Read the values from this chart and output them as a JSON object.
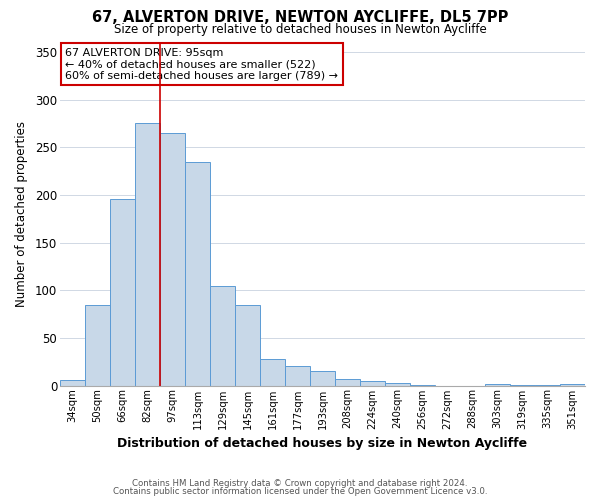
{
  "title": "67, ALVERTON DRIVE, NEWTON AYCLIFFE, DL5 7PP",
  "subtitle": "Size of property relative to detached houses in Newton Aycliffe",
  "xlabel": "Distribution of detached houses by size in Newton Aycliffe",
  "ylabel": "Number of detached properties",
  "bin_labels": [
    "34sqm",
    "50sqm",
    "66sqm",
    "82sqm",
    "97sqm",
    "113sqm",
    "129sqm",
    "145sqm",
    "161sqm",
    "177sqm",
    "193sqm",
    "208sqm",
    "224sqm",
    "240sqm",
    "256sqm",
    "272sqm",
    "288sqm",
    "303sqm",
    "319sqm",
    "335sqm",
    "351sqm"
  ],
  "bar_heights": [
    6,
    84,
    196,
    275,
    265,
    235,
    104,
    84,
    28,
    20,
    15,
    7,
    5,
    3,
    1,
    0,
    0,
    2,
    1,
    1,
    2
  ],
  "bar_color": "#c8d8e8",
  "bar_edgecolor": "#5b9bd5",
  "vline_pos": 3.5,
  "vline_color": "#cc0000",
  "annotation_line1": "67 ALVERTON DRIVE: 95sqm",
  "annotation_line2": "← 40% of detached houses are smaller (522)",
  "annotation_line3": "60% of semi-detached houses are larger (789) →",
  "annotation_box_edgecolor": "#cc0000",
  "ylim": [
    0,
    360
  ],
  "yticks": [
    0,
    50,
    100,
    150,
    200,
    250,
    300,
    350
  ],
  "footer1": "Contains HM Land Registry data © Crown copyright and database right 2024.",
  "footer2": "Contains public sector information licensed under the Open Government Licence v3.0.",
  "background_color": "#ffffff",
  "grid_color": "#d0d8e4"
}
